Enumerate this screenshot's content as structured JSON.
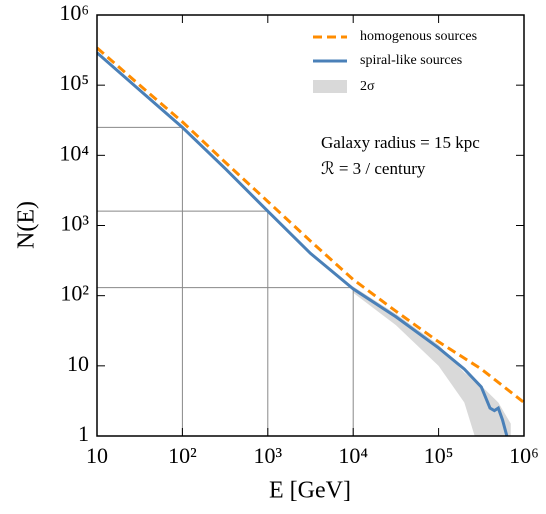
{
  "chart_data": {
    "type": "line",
    "xlabel": "E [GeV]",
    "ylabel": "N(E)",
    "xscale": "log",
    "yscale": "log",
    "xlim": [
      10,
      1000000
    ],
    "ylim": [
      1,
      1000000
    ],
    "xticks": [
      10,
      {
        "value": 100,
        "label": "10²"
      },
      {
        "value": 1000,
        "label": "10³"
      },
      {
        "value": 10000,
        "label": "10⁴"
      },
      {
        "value": 100000,
        "label": "10⁵"
      },
      {
        "value": 1000000,
        "label": "10⁶"
      }
    ],
    "yticks": [
      1,
      10,
      {
        "value": 100,
        "label": "10²"
      },
      {
        "value": 1000,
        "label": "10³"
      },
      {
        "value": 10000,
        "label": "10⁴"
      },
      {
        "value": 100000,
        "label": "10⁵"
      },
      {
        "value": 1000000,
        "label": "10⁶"
      }
    ],
    "series": [
      {
        "name": "homogenous sources",
        "color": "#ff8c00",
        "dashed": true,
        "x": [
          10,
          31.6,
          100,
          316,
          1000,
          3162,
          10000,
          31623,
          100000,
          316228,
          1000000
        ],
        "values": [
          340000,
          100000,
          30000,
          8000,
          2200,
          600,
          170,
          60,
          22,
          9,
          3
        ]
      },
      {
        "name": "spiral-like sources",
        "color": "#4a80b8",
        "dashed": false,
        "x": [
          10,
          31.6,
          100,
          316,
          1000,
          3162,
          10000,
          31623,
          100000,
          200000,
          316228,
          400000,
          450000,
          500000,
          560000,
          630000
        ],
        "values": [
          290000,
          85000,
          25000,
          6500,
          1600,
          400,
          125,
          50,
          18,
          9,
          5,
          2.5,
          2.3,
          2.5,
          1.7,
          1
        ]
      }
    ],
    "band": {
      "name": "2σ",
      "color": "#d9d9d9",
      "x": [
        10000,
        31623,
        100000,
        200000,
        280000,
        500000,
        700000
      ],
      "lower": [
        110,
        38,
        10,
        3,
        0.8,
        0.5,
        0.5
      ],
      "upper": [
        135,
        55,
        20,
        8,
        6,
        3,
        1.5
      ]
    },
    "reference_lines": [
      {
        "x": 100,
        "y": 25000
      },
      {
        "x": 1000,
        "y": 1600
      },
      {
        "x": 10000,
        "y": 130
      }
    ],
    "annotations": [
      "Galaxy radius = 15 kpc",
      "ℛ = 3 / century"
    ]
  }
}
